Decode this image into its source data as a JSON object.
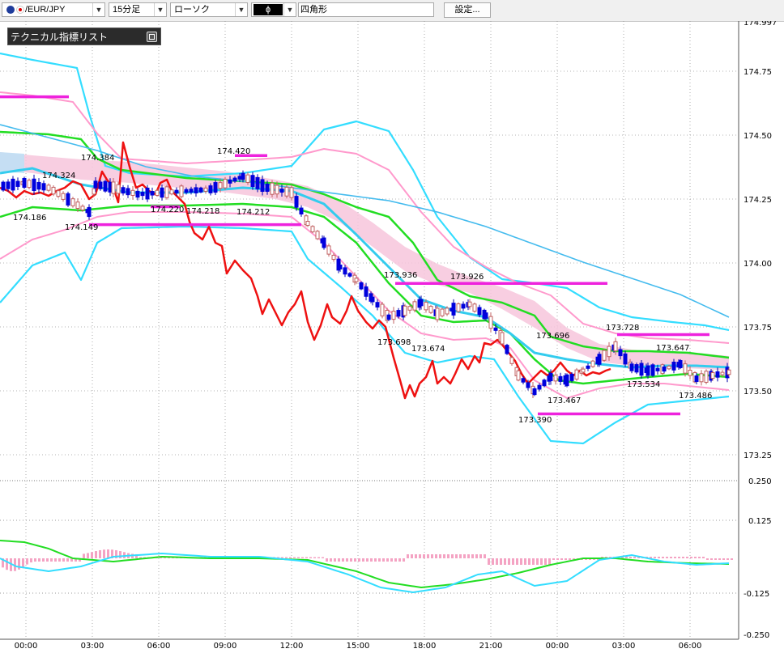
{
  "toolbar": {
    "symbol": "/EUR/JPY",
    "timeframe": "15分足",
    "chart_type": "ローソク",
    "color_symbol": "ɸ",
    "drawing_tool": "四角形",
    "settings": "設定..."
  },
  "indicator_panel": {
    "title": "テクニカル指標リスト"
  },
  "colors": {
    "bull_candle": "#e0a0a0",
    "bear_candle": "#0000dd",
    "bollinger_outer": "#33ddff",
    "bollinger_inner": "#ff99cc",
    "ma_green": "#22dd22",
    "ma_cyan": "#33ccee",
    "ma_long": "#44bbee",
    "lagging_line": "#ee1111",
    "horizontal_lines": "#ee22dd",
    "cloud": "#f7c6dc"
  },
  "chart_data": {
    "type": "candlestick",
    "title": "",
    "y_axis": {
      "labels": [
        "174.75",
        "174.50",
        "174.25",
        "174.00",
        "173.75",
        "173.50",
        "173.25"
      ],
      "range": [
        173.25,
        174.97
      ]
    },
    "x_axis": {
      "labels": [
        "00:00",
        "03:00",
        "06:00",
        "09:00",
        "12:00",
        "15:00",
        "18:00",
        "21:00",
        "00:00",
        "03:00",
        "06:00"
      ]
    },
    "price_labels": [
      {
        "text": "174.384",
        "price": 174.384
      },
      {
        "text": "174.324",
        "price": 174.324
      },
      {
        "text": "174.186",
        "price": 174.186
      },
      {
        "text": "174.149",
        "price": 174.149
      },
      {
        "text": "174.420",
        "price": 174.42
      },
      {
        "text": "174.220",
        "price": 174.22
      },
      {
        "text": "174.218",
        "price": 174.218
      },
      {
        "text": "174.212",
        "price": 174.212
      },
      {
        "text": "173.936",
        "price": 173.936
      },
      {
        "text": "173.926",
        "price": 173.926
      },
      {
        "text": "173.698",
        "price": 173.698
      },
      {
        "text": "173.674",
        "price": 173.674
      },
      {
        "text": "173.696",
        "price": 173.696
      },
      {
        "text": "173.467",
        "price": 173.467
      },
      {
        "text": "173.390",
        "price": 173.39
      },
      {
        "text": "173.728",
        "price": 173.728
      },
      {
        "text": "173.647",
        "price": 173.647
      },
      {
        "text": "173.534",
        "price": 173.534
      },
      {
        "text": "173.486",
        "price": 173.486
      }
    ],
    "horizontal_levels": [
      174.65,
      174.42,
      174.22,
      174.15,
      173.92,
      173.72,
      173.41
    ],
    "macd": {
      "y_labels": [
        "0.250",
        "0.125",
        "-0.125",
        "-0.250"
      ],
      "range": [
        -0.25,
        0.25
      ]
    }
  }
}
